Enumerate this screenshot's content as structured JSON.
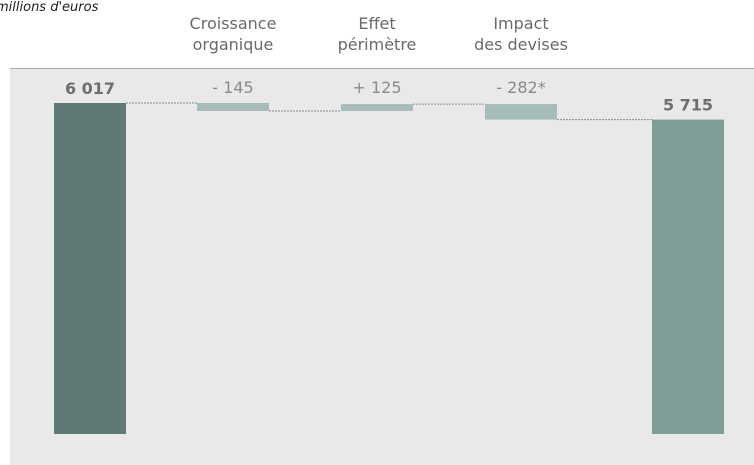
{
  "unit_label": "millions d'euros",
  "colors": {
    "total_start": "#5f7a76",
    "total_end": "#7f9c99",
    "step": "#a7bcb9",
    "connector": "#8a8a8a",
    "background": "#e9e9e9"
  },
  "chart_data": {
    "type": "bar",
    "subtype": "waterfall",
    "title": "",
    "unit": "millions d'euros",
    "categories": [
      "",
      "Croissance organique",
      "Effet périmètre",
      "Impact des devises",
      ""
    ],
    "values": [
      6017,
      -145,
      125,
      -282,
      5715
    ],
    "value_labels": [
      "6 017",
      "- 145",
      "+ 125",
      "- 282*",
      "5 715"
    ],
    "kinds": [
      "total",
      "step",
      "step",
      "step",
      "total"
    ],
    "category_label_lines": [
      [],
      [
        "Croissance",
        "organique"
      ],
      [
        "Effet",
        "périmètre"
      ],
      [
        "Impact",
        "des devises"
      ],
      []
    ],
    "grid": false,
    "legend": "none"
  }
}
